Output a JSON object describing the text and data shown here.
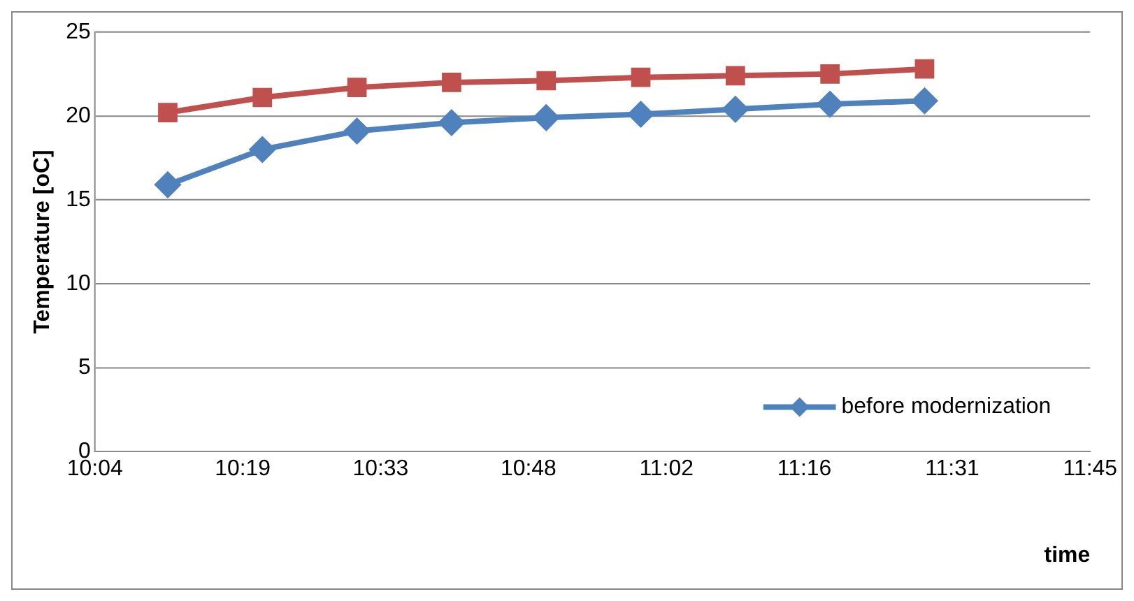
{
  "chart_data": {
    "type": "line",
    "xlabel": "time",
    "ylabel": "Temperature [oC]",
    "x": [
      10.19,
      10.35,
      10.51,
      10.67,
      10.83,
      10.99,
      11.15,
      11.31,
      11.47
    ],
    "series": [
      {
        "name": "before modernization",
        "color": "#4f81bd",
        "marker": "diamond",
        "values": [
          15.9,
          18,
          19.1,
          19.6,
          19.9,
          20.1,
          20.4,
          20.7,
          20.9
        ]
      },
      {
        "color": "#c0504d",
        "marker": "square",
        "values": [
          20.2,
          21.1,
          21.7,
          22.0,
          22.1,
          22.3,
          22.4,
          22.5,
          22.8
        ]
      }
    ],
    "xlim": [
      10.0667,
      11.75
    ],
    "xticks": [
      {
        "value": 10.0667,
        "label": "10:04"
      },
      {
        "value": 10.3167,
        "label": "10:19"
      },
      {
        "value": 10.55,
        "label": "10:33"
      },
      {
        "value": 10.8,
        "label": "10:48"
      },
      {
        "value": 11.0333,
        "label": "11:02"
      },
      {
        "value": 11.2667,
        "label": "11:16"
      },
      {
        "value": 11.5167,
        "label": "11:31"
      },
      {
        "value": 11.75,
        "label": "11:45"
      }
    ],
    "ylim": [
      0,
      25
    ],
    "yticks": [
      0,
      5,
      10,
      15,
      20,
      25
    ],
    "grid": "y",
    "legend": "bottom right",
    "line_style": "solid"
  }
}
